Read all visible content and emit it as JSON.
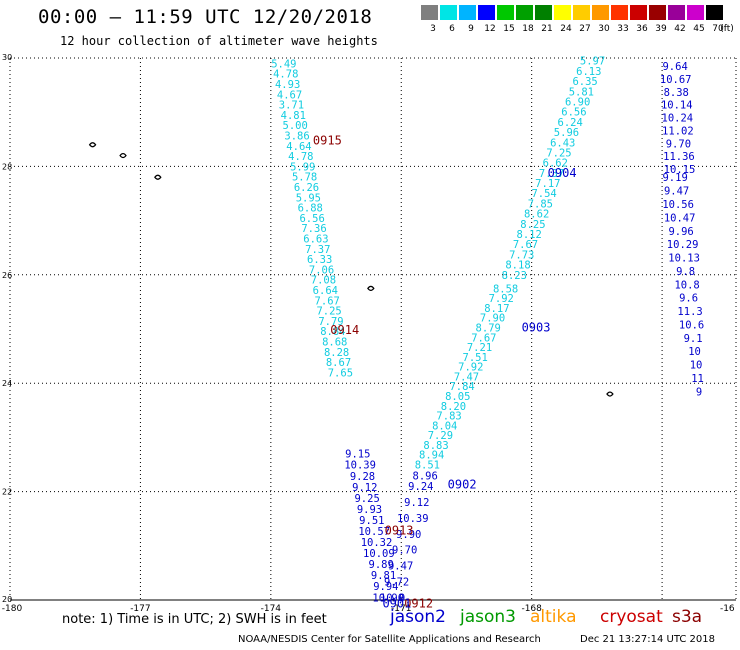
{
  "header": {
    "title": "00:00 — 11:59 UTC 12/20/2018",
    "subtitle": "12 hour collection of altimeter wave heights"
  },
  "legend": {
    "unit": "(ft)",
    "entries": [
      {
        "label": "3",
        "color": "#7f7f7f"
      },
      {
        "label": "6",
        "color": "#00e5e5"
      },
      {
        "label": "9",
        "color": "#00b4ff"
      },
      {
        "label": "12",
        "color": "#0000ff"
      },
      {
        "label": "15",
        "color": "#00c800"
      },
      {
        "label": "18",
        "color": "#00a000"
      },
      {
        "label": "21",
        "color": "#008000"
      },
      {
        "label": "24",
        "color": "#ffff00"
      },
      {
        "label": "27",
        "color": "#ffcc00"
      },
      {
        "label": "30",
        "color": "#ff9900"
      },
      {
        "label": "33",
        "color": "#ff3300"
      },
      {
        "label": "36",
        "color": "#cc0000"
      },
      {
        "label": "39",
        "color": "#990000"
      },
      {
        "label": "42",
        "color": "#990099"
      },
      {
        "label": "45",
        "color": "#cc00cc"
      },
      {
        "label": "70",
        "color": "#000000"
      }
    ]
  },
  "map": {
    "lon_labels": [
      "-180",
      "-177",
      "-174",
      "-171",
      "-168",
      "-16"
    ],
    "lat_labels": [
      "30",
      "28",
      "26",
      "24",
      "22",
      "20"
    ],
    "colors": {
      "cyan": "#11cce0",
      "blue": "#0000cc",
      "darkred": "#8b0000",
      "red": "#ff0000"
    },
    "time_labels": [
      {
        "text": "0915",
        "lon": -172.7,
        "lat": 28.5
      },
      {
        "text": "0914",
        "lon": -172.3,
        "lat": 25.0
      },
      {
        "text": "0913",
        "lon": -171.05,
        "lat": 21.3
      },
      {
        "text": "0912",
        "lon": -170.6,
        "lat": 19.95
      },
      {
        "text": "0904",
        "lon": -167.3,
        "lat": 27.9
      },
      {
        "text": "0903",
        "lon": -167.9,
        "lat": 25.05
      },
      {
        "text": "0902",
        "lon": -169.6,
        "lat": 22.15
      },
      {
        "text": "0901",
        "lon": -171.1,
        "lat": 19.95
      }
    ],
    "track_0915": {
      "color": "cyan",
      "start": [
        -173.7,
        29.9
      ],
      "end": [
        -172.4,
        24.2
      ],
      "values": [
        "5.49",
        "4.78",
        "4.93",
        "4.67",
        "3.71",
        "4.81",
        "5.00",
        "3.86",
        "4.64",
        "4.78",
        "5.99",
        "5.78",
        "6.26",
        "5.95",
        "6.88",
        "6.56",
        "7.36",
        "6.63",
        "7.37",
        "6.33",
        "7.06",
        "7.08",
        "6.64",
        "7.67",
        "7.25",
        "7.79",
        "8.84",
        "8.68",
        "8.28",
        "8.67",
        "7.65"
      ]
    },
    "track_0914": {
      "color": "blue",
      "start": [
        -172.0,
        22.7
      ],
      "end": [
        -171.3,
        20.05
      ],
      "values": [
        "9.15",
        "10.39",
        "9.28",
        "9.12",
        "9.25",
        "9.93",
        "9.51",
        "10.57",
        "10.32",
        "10.09",
        "9.89",
        "9.81",
        "9.94",
        "10.90"
      ]
    },
    "track_0913": {
      "color": "blue",
      "start": [
        -170.55,
        22.1
      ],
      "end": [
        -171.2,
        20.05
      ],
      "values": [
        "9.24",
        "9.12",
        "10.39",
        "9.90",
        "9.70",
        "9.47",
        "9.72",
        "10.0"
      ]
    },
    "track_0904": {
      "color": "cyan",
      "start": [
        -166.6,
        29.95
      ],
      "end": [
        -168.4,
        26.0
      ],
      "values": [
        "5.97",
        "6.13",
        "6.35",
        "5.81",
        "6.90",
        "6.56",
        "6.24",
        "5.96",
        "6.43",
        "7.25",
        "6.62",
        "7.37",
        "7.17",
        "7.54",
        "7.85",
        "8.62",
        "8.25",
        "8.12",
        "7.67",
        "7.73",
        "8.18",
        "8.23"
      ]
    },
    "track_0903": {
      "color": "cyan",
      "start": [
        -168.6,
        25.75
      ],
      "end": [
        -170.4,
        22.5
      ],
      "values": [
        "8.58",
        "7.92",
        "8.17",
        "7.90",
        "8.79",
        "7.67",
        "7.21",
        "7.51",
        "7.92",
        "7.47",
        "7.84",
        "8.05",
        "8.20",
        "7.83",
        "8.04",
        "7.29",
        "8.83",
        "8.94",
        "8.51"
      ]
    },
    "track_0902_blue": {
      "color": "blue",
      "start": [
        -170.45,
        22.3
      ],
      "end": [
        -170.45,
        22.3
      ],
      "values": [
        "8.96"
      ]
    },
    "track_east": {
      "color": "blue",
      "start": [
        -164.7,
        29.85
      ],
      "end": [
        -164.6,
        27.95
      ],
      "values": [
        "9.64",
        "10.67",
        "8.38",
        "10.14",
        "10.24",
        "11.02",
        "9.70",
        "11.36",
        "10.15"
      ]
    },
    "track_east2": {
      "color": "blue",
      "start": [
        -164.7,
        27.8
      ],
      "end": [
        -164.15,
        23.85
      ],
      "values": [
        "9.19",
        "9.47",
        "10.56",
        "10.47",
        "9.96",
        "10.29",
        "10.13",
        "9.8",
        "10.8",
        "9.6",
        "11.3",
        "10.6",
        "9.1",
        "10",
        "10",
        "11",
        "9"
      ]
    }
  },
  "footer": {
    "note": "note:  1) Time is in UTC;  2) SWH is in feet",
    "satellites": [
      {
        "name": "jason2",
        "color": "#0000cc"
      },
      {
        "name": "jason3",
        "color": "#009900"
      },
      {
        "name": "altika",
        "color": "#ff9900"
      },
      {
        "name": "cryosat",
        "color": "#cc0000"
      },
      {
        "name": "s3a",
        "color": "#8b0000"
      }
    ],
    "credit": "NOAA/NESDIS Center for Satellite Applications and Research",
    "timestamp": "Dec 21 13:27:14 UTC 2018"
  }
}
